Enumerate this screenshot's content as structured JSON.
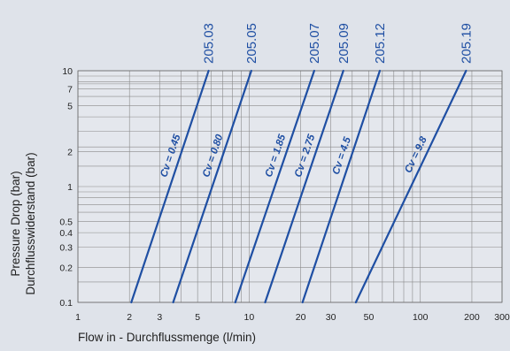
{
  "chart_data": {
    "type": "line",
    "title": "",
    "xlabel": "Flow in - Durchflussmenge (l/min)",
    "ylabel_lines": [
      "Pressure Drop (bar)",
      "Durchflusswiderstand (bar)"
    ],
    "x_scale": "log",
    "y_scale": "log",
    "xlim": [
      1,
      300
    ],
    "ylim": [
      0.1,
      10
    ],
    "x_ticks": [
      1,
      2,
      3,
      5,
      10,
      20,
      30,
      50,
      100,
      200,
      300
    ],
    "x_tick_labels": [
      "1",
      "2",
      "3",
      "5",
      "10",
      "20",
      "30",
      "50",
      "100",
      "200",
      "300"
    ],
    "y_ticks": [
      0.1,
      0.2,
      0.3,
      0.4,
      0.5,
      1,
      2,
      5,
      7,
      10
    ],
    "y_tick_labels": [
      "0.1",
      "0.2",
      "0.3",
      "0.4",
      "0.5",
      "1",
      "2",
      "5",
      "7",
      "10"
    ],
    "grid": true,
    "line_color": "#1f4fa3",
    "grid_color": "#8a8a8a",
    "series": [
      {
        "name": "205.03",
        "cv_label": "Cv = 0.45",
        "x": [
          2.05,
          5.8
        ],
        "y": [
          0.1,
          10
        ]
      },
      {
        "name": "205.05",
        "cv_label": "Cv = 0.80",
        "x": [
          3.6,
          10.3
        ],
        "y": [
          0.1,
          10
        ]
      },
      {
        "name": "205.07",
        "cv_label": "Cv = 1.85",
        "x": [
          8.3,
          24
        ],
        "y": [
          0.1,
          10
        ]
      },
      {
        "name": "205.09",
        "cv_label": "Cv = 2.75",
        "x": [
          12.4,
          35.5
        ],
        "y": [
          0.1,
          10
        ]
      },
      {
        "name": "205.12",
        "cv_label": "Cv = 4.5",
        "x": [
          20.5,
          58
        ],
        "y": [
          0.1,
          10
        ]
      },
      {
        "name": "205.19",
        "cv_label": "Cv = 9.8",
        "x": [
          42,
          185
        ],
        "y": [
          0.1,
          10
        ]
      }
    ]
  }
}
